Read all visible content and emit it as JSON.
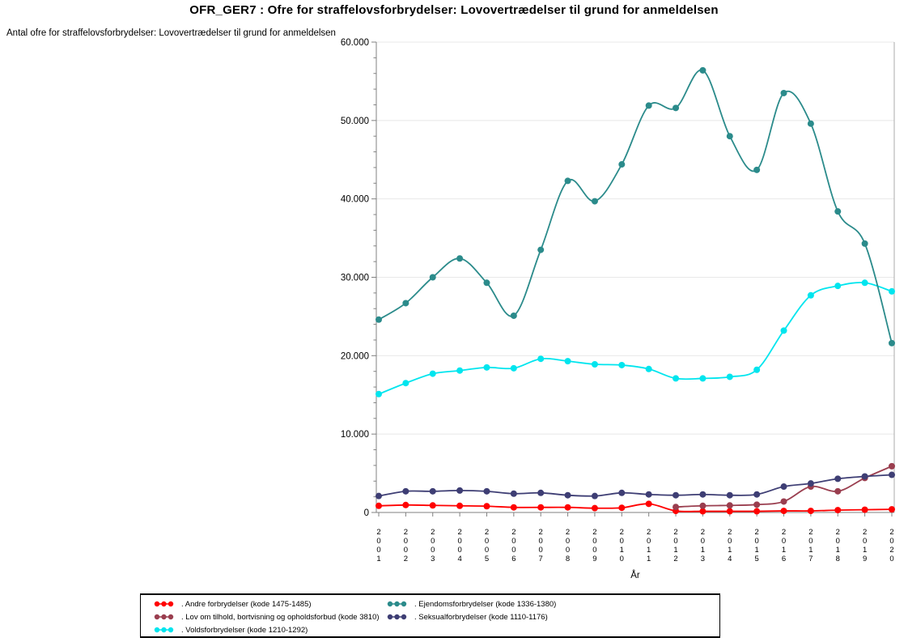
{
  "title": "OFR_GER7 : Ofre for straffelovsforbrydelser: Lovovertrædelser til grund for anmeldelsen",
  "y_axis_label": "Antal ofre for straffelovsforbrydelser: Lovovertrædelser til grund for anmeldelsen",
  "x_axis_label": "År",
  "colors": {
    "axis": "#808080",
    "frame": "#ababab",
    "grid": "#e8e8e8",
    "text": "#000000",
    "background": "#ffffff"
  },
  "chart_data": {
    "type": "line",
    "title": "OFR_GER7 : Ofre for straffelovsforbrydelser: Lovovertrædelser til grund for anmeldelsen",
    "xlabel": "År",
    "ylabel": "Antal ofre for straffelovsforbrydelser: Lovovertrædelser til grund for anmeldelsen",
    "x": [
      2001,
      2002,
      2003,
      2004,
      2005,
      2006,
      2007,
      2008,
      2009,
      2010,
      2011,
      2012,
      2013,
      2014,
      2015,
      2016,
      2017,
      2018,
      2019,
      2020
    ],
    "ylim": [
      0,
      60000
    ],
    "ytick_interval": 10000,
    "ytick_labels": [
      "0",
      "10.000",
      "20.000",
      "30.000",
      "40.000",
      "50.000",
      "60.000"
    ],
    "minor_tick_interval": 2000,
    "grid": true,
    "legend_position": "bottom",
    "marker": "filled-circle",
    "smooth": true,
    "series": [
      {
        "key": "andre",
        "name": ". Andre forbrydelser (kode 1475-1485)",
        "color": "#ff0000",
        "values": [
          850,
          950,
          900,
          850,
          800,
          650,
          650,
          650,
          550,
          600,
          1100,
          200,
          150,
          150,
          150,
          200,
          200,
          300,
          350,
          400
        ]
      },
      {
        "key": "volds",
        "name": ". Voldsforbrydelser (kode 1210-1292)",
        "color": "#00e5ee",
        "values": [
          15100,
          16500,
          17700,
          18100,
          18500,
          18400,
          19600,
          19300,
          18900,
          18800,
          18300,
          17100,
          17100,
          17300,
          18200,
          23200,
          27700,
          28900,
          29300,
          28200
        ]
      },
      {
        "key": "ejendom",
        "name": ". Ejendomsforbrydelser (kode 1336-1380)",
        "color": "#2b8b8b",
        "values": [
          24600,
          26700,
          30000,
          32400,
          29300,
          25100,
          33500,
          42300,
          39700,
          44400,
          51900,
          51600,
          56400,
          48000,
          43700,
          53500,
          49600,
          38400,
          34300,
          21600
        ]
      },
      {
        "key": "tilhold",
        "name": ". Lov om tilhold, bortvisning og opholdsforbud (kode 3810)",
        "color": "#9a3e4f",
        "values": [
          null,
          null,
          null,
          null,
          null,
          null,
          null,
          null,
          null,
          null,
          null,
          700,
          850,
          900,
          1000,
          1400,
          3300,
          2700,
          4400,
          5900
        ]
      },
      {
        "key": "seksual",
        "name": ". Seksualforbrydelser (kode 1110-1176)",
        "color": "#3e3e74",
        "values": [
          2100,
          2700,
          2700,
          2800,
          2700,
          2400,
          2500,
          2200,
          2100,
          2500,
          2300,
          2200,
          2300,
          2200,
          2300,
          3300,
          3700,
          4300,
          4600,
          4800
        ]
      }
    ],
    "legend_order": [
      0,
      3,
      1,
      2,
      4
    ]
  }
}
